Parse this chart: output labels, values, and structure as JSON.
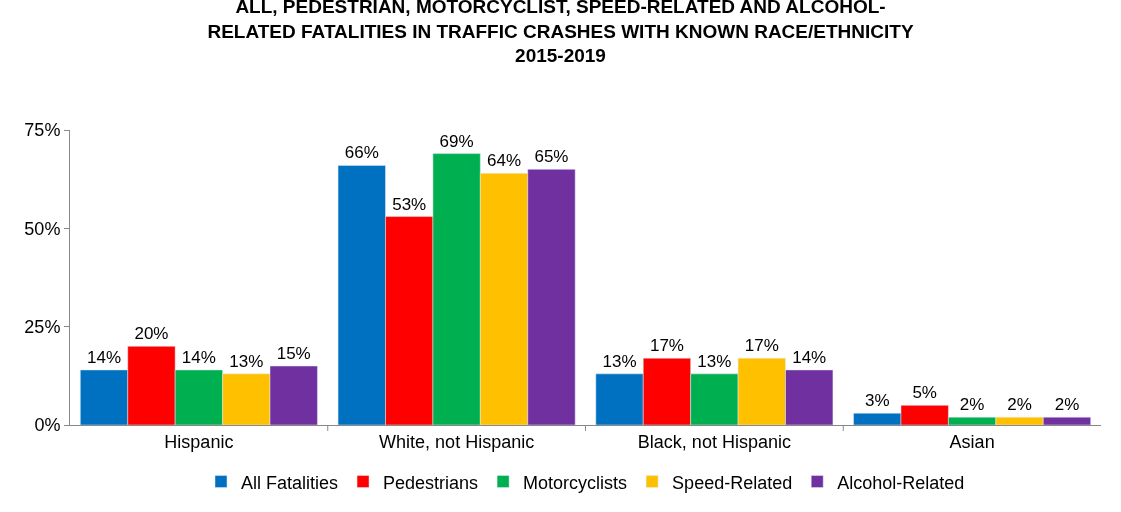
{
  "chart_data": {
    "type": "bar",
    "title": "ALL, PEDESTRIAN, MOTORCYCLIST, SPEED-RELATED AND ALCOHOL-\nRELATED FATALITIES IN TRAFFIC CRASHES WITH KNOWN RACE/ETHNICITY\n2015-2019",
    "categories": [
      "Hispanic",
      "White, not Hispanic",
      "Black, not Hispanic",
      "Asian"
    ],
    "series": [
      {
        "name": "All Fatalities",
        "color": "#0070c0",
        "values": [
          14,
          66,
          13,
          3
        ],
        "value_labels": [
          "14%",
          "66%",
          "13%",
          "3%"
        ]
      },
      {
        "name": "Pedestrians",
        "color": "#ff0000",
        "values": [
          20,
          53,
          17,
          5
        ],
        "value_labels": [
          "20%",
          "53%",
          "17%",
          "5%"
        ]
      },
      {
        "name": "Motorcyclists",
        "color": "#00b050",
        "values": [
          14,
          69,
          13,
          2
        ],
        "value_labels": [
          "14%",
          "69%",
          "13%",
          "2%"
        ]
      },
      {
        "name": "Speed-Related",
        "color": "#ffc000",
        "values": [
          13,
          64,
          17,
          2
        ],
        "value_labels": [
          "13%",
          "64%",
          "17%",
          "2%"
        ]
      },
      {
        "name": "Alcohol-Related",
        "color": "#7030a0",
        "values": [
          15,
          65,
          14,
          2
        ],
        "value_labels": [
          "15%",
          "65%",
          "14%",
          "2%"
        ]
      }
    ],
    "ylim": [
      0,
      75
    ],
    "yticks": [
      {
        "value": 0,
        "label": "0%"
      },
      {
        "value": 25,
        "label": "25%"
      },
      {
        "value": 50,
        "label": "50%"
      },
      {
        "value": 75,
        "label": "75%"
      }
    ],
    "grid": false,
    "legend": "bottom"
  }
}
